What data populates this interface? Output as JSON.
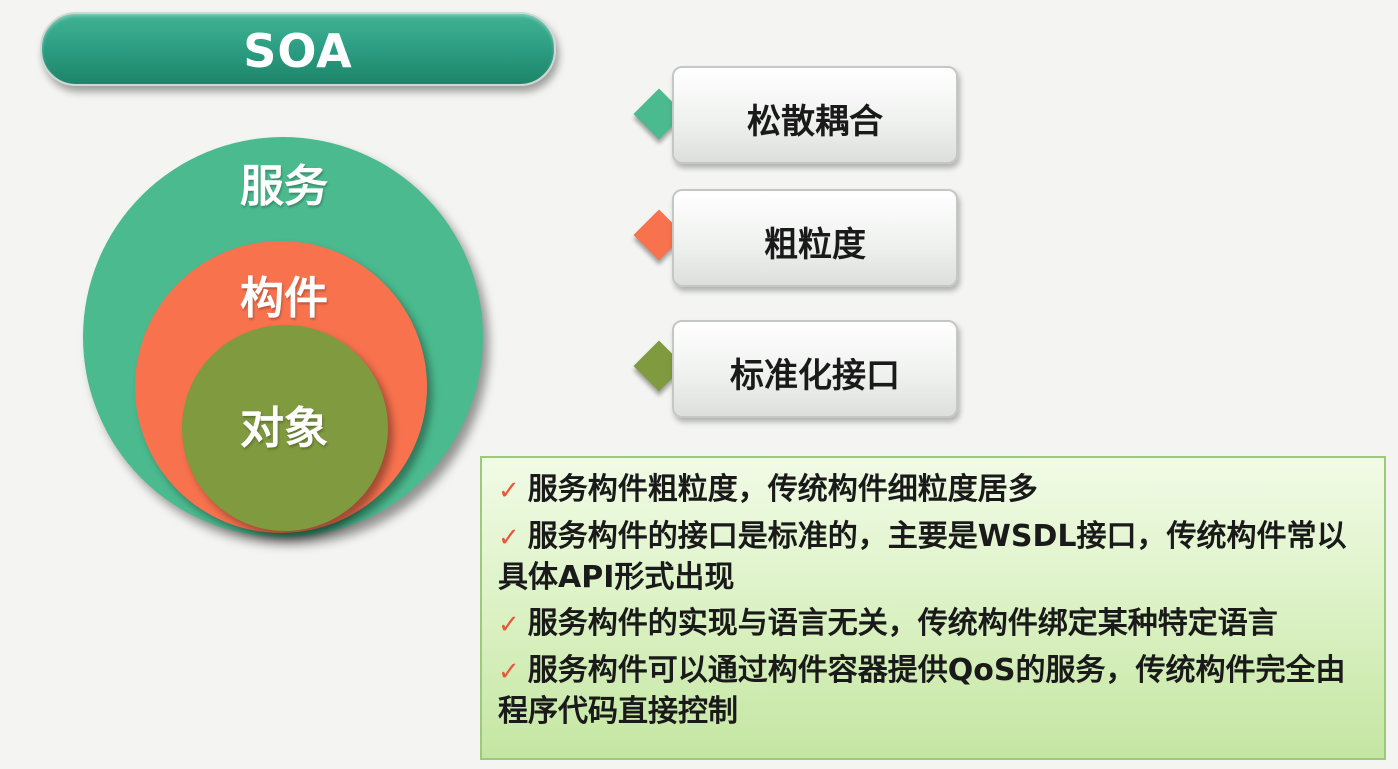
{
  "title": "SOA",
  "circles": {
    "outer": {
      "label": "服务",
      "color": "#4bba8e"
    },
    "middle": {
      "label": "构件",
      "color": "#f8724e"
    },
    "inner": {
      "label": "对象",
      "color": "#7f9a3f"
    }
  },
  "features": [
    {
      "label": "松散耦合",
      "bullet_color": "#4bba8e"
    },
    {
      "label": "粗粒度",
      "bullet_color": "#f8724e"
    },
    {
      "label": "标准化接口",
      "bullet_color": "#7f9a3f"
    }
  ],
  "notes": [
    {
      "check": "✓",
      "text": "服务构件粗粒度，传统构件细粒度居多"
    },
    {
      "check": "✓",
      "text": "服务构件的接口是标准的，主要是WSDL接口，传统构件常以具体API形式出现"
    },
    {
      "check": "✓",
      "text": "服务构件的实现与语言无关，传统构件绑定某种特定语言"
    },
    {
      "check": "✓",
      "text": "服务构件可以通过构件容器提供QoS的服务，传统构件完全由程序代码直接控制"
    }
  ]
}
